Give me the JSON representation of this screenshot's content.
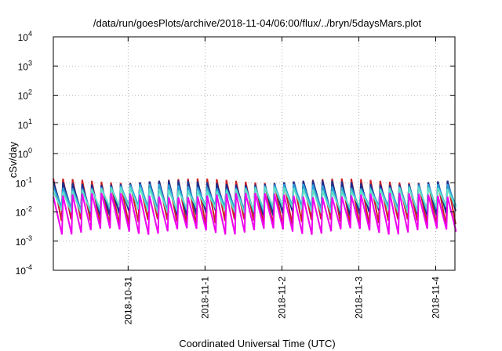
{
  "chart_data": {
    "type": "line",
    "title": "/data/run/goesPlots/archive/2018-11-04/06:00/flux/../bryn/5daysMars.plot",
    "xlabel": "Coordinated Universal Time (UTC)",
    "ylabel": "cSv/day",
    "yscale": "log",
    "ylim": [
      0.0001,
      10000
    ],
    "y_ticks": [
      {
        "base": "10",
        "exp": "-4"
      },
      {
        "base": "10",
        "exp": "-3"
      },
      {
        "base": "10",
        "exp": "-2"
      },
      {
        "base": "10",
        "exp": "-1"
      },
      {
        "base": "10",
        "exp": "0"
      },
      {
        "base": "10",
        "exp": "1"
      },
      {
        "base": "10",
        "exp": "2"
      },
      {
        "base": "10",
        "exp": "3"
      },
      {
        "base": "10",
        "exp": "4"
      }
    ],
    "xlim": [
      "2018-10-30 00:40",
      "2018-11-04 06:00"
    ],
    "x_ticks": [
      "2018-10-31",
      "2018-11-1",
      "2018-11-2",
      "2018-11-3",
      "2018-11-4"
    ],
    "grid": true,
    "legend": "none",
    "sawtooth_period_hours": 3.0,
    "series": [
      {
        "color": "#cc2222",
        "peak": 0.14,
        "trough": 0.0045
      },
      {
        "color": "#1f2d8a",
        "peak": 0.12,
        "trough": 0.01
      },
      {
        "color": "#2aa0d8",
        "peak": 0.09,
        "trough": 0.013
      },
      {
        "color": "#5fe0c8",
        "peak": 0.07,
        "trough": 0.012
      },
      {
        "color": "#ee00ee",
        "peak": 0.045,
        "trough": 0.0022
      }
    ]
  }
}
